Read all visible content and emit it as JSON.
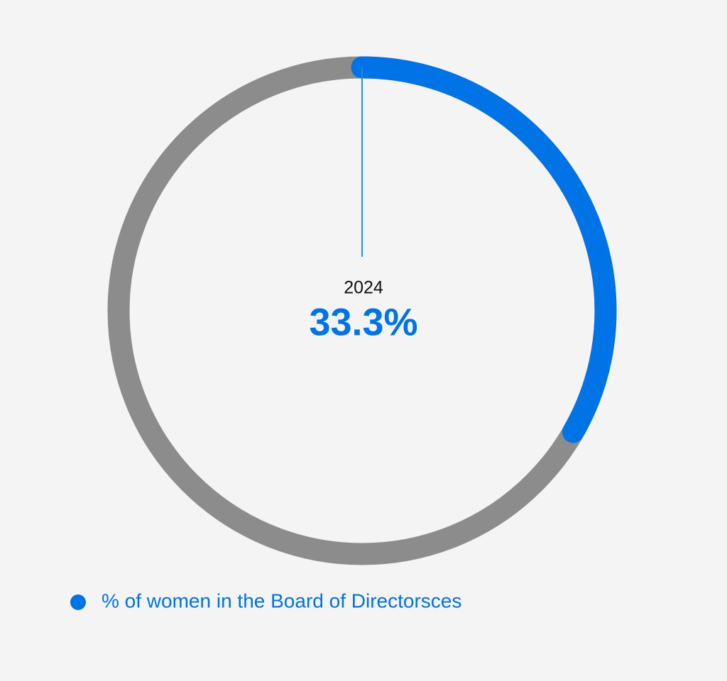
{
  "chart_data": {
    "type": "donut",
    "center_label": "2024",
    "track_color": "#8c8c8c",
    "series": [
      {
        "name": "% of women in the Board of Directorsces",
        "color": "#0073e6",
        "values": [
          33.3
        ],
        "value_labels": [
          "33.3%"
        ]
      }
    ]
  }
}
